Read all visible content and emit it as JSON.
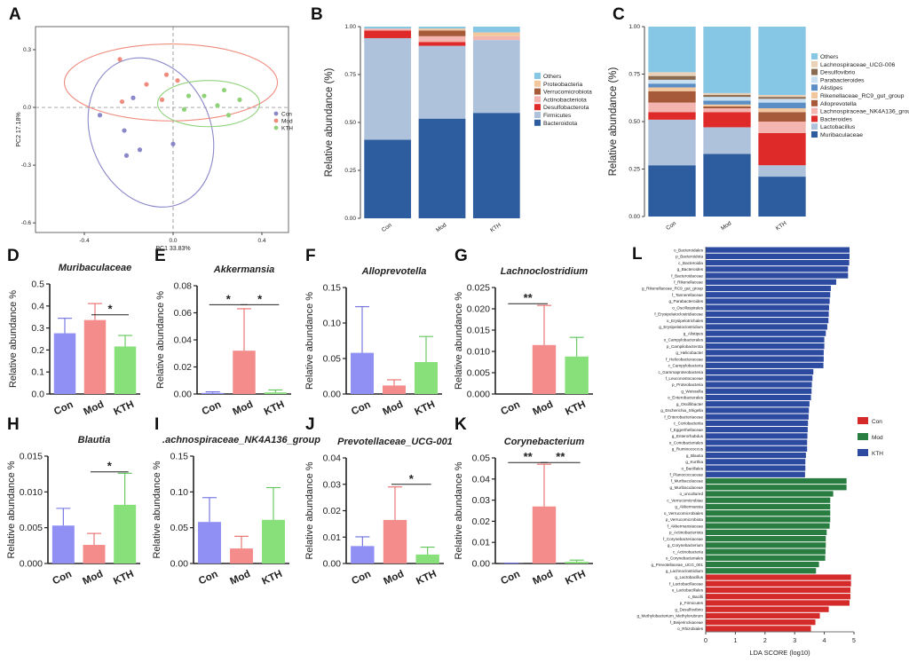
{
  "figure_title": "",
  "chart_data": [
    {
      "panel": "A",
      "type": "scatter",
      "title": "",
      "xlabel": "PC1 33.83%",
      "ylabel": "PC2 17.18%",
      "xlim": [
        -0.62,
        0.52
      ],
      "ylim": [
        -0.65,
        0.42
      ],
      "xticks": [
        {
          "v": -0.4,
          "l": "-0.4"
        },
        {
          "v": 0,
          "l": "0.0"
        },
        {
          "v": 0.4,
          "l": "0.4"
        }
      ],
      "yticks": [
        {
          "v": 0.3,
          "l": "0.3"
        },
        {
          "v": 0,
          "l": "0.0"
        },
        {
          "v": -0.3,
          "l": "-0.3"
        },
        {
          "v": -0.6,
          "l": "-0.6"
        }
      ],
      "legend": [
        "Con",
        "Mod",
        "KTH"
      ],
      "series": [
        {
          "name": "Con",
          "color": "#8b88c9",
          "points": [
            [
              -0.18,
              0.05
            ],
            [
              -0.33,
              -0.04
            ],
            [
              -0.22,
              -0.12
            ],
            [
              -0.15,
              -0.22
            ],
            [
              -0.21,
              -0.25
            ],
            [
              0.0,
              -0.19
            ]
          ],
          "ellipse": {
            "cx": -0.1,
            "cy": -0.13,
            "rx": 0.27,
            "ry": 0.4,
            "angle": -23
          }
        },
        {
          "name": "Mod",
          "color": "#f08c7e",
          "points": [
            [
              -0.24,
              0.25
            ],
            [
              -0.12,
              0.12
            ],
            [
              0.02,
              0.14
            ],
            [
              -0.23,
              0.03
            ],
            [
              -0.05,
              0.04
            ],
            [
              -0.03,
              0.17
            ]
          ],
          "ellipse": {
            "cx": -0.01,
            "cy": 0.13,
            "rx": 0.48,
            "ry": 0.2,
            "angle": 0
          }
        },
        {
          "name": "KTH",
          "color": "#8fd27a",
          "points": [
            [
              0.07,
              0.06
            ],
            [
              0.14,
              0.06
            ],
            [
              0.2,
              0.01
            ],
            [
              0.3,
              0.04
            ],
            [
              0.05,
              -0.01
            ],
            [
              0.23,
              0.09
            ],
            [
              0.25,
              -0.04
            ]
          ],
          "ellipse": {
            "cx": 0.16,
            "cy": 0.02,
            "rx": 0.23,
            "ry": 0.12,
            "angle": 0
          }
        }
      ]
    },
    {
      "panel": "B",
      "type": "bar",
      "stacked": true,
      "title": "",
      "xlabel": "",
      "ylabel": "Relative abundance (%)",
      "ylim": [
        0,
        1
      ],
      "yticks": [
        "0.00",
        "0.25",
        "0.50",
        "0.75",
        "1.00"
      ],
      "categories": [
        "Con",
        "Mod",
        "KTH"
      ],
      "series": [
        {
          "name": "Bacteroidota",
          "color": "#2e5d9f",
          "values": [
            0.41,
            0.52,
            0.55
          ]
        },
        {
          "name": "Firmicutes",
          "color": "#afc2dc",
          "values": [
            0.53,
            0.38,
            0.38
          ]
        },
        {
          "name": "Desulfobacterota",
          "color": "#de2a28",
          "values": [
            0.04,
            0.02,
            0.0
          ]
        },
        {
          "name": "Actinobacteriota",
          "color": "#f4b5b0",
          "values": [
            0.01,
            0.03,
            0.02
          ]
        },
        {
          "name": "Verrucomicrobiota",
          "color": "#a65a3a",
          "values": [
            0.0,
            0.03,
            0.0
          ]
        },
        {
          "name": "Proteobacteria",
          "color": "#f2c79e",
          "values": [
            0.0,
            0.01,
            0.02
          ]
        },
        {
          "name": "Others",
          "color": "#86c7e6",
          "values": [
            0.01,
            0.01,
            0.03
          ]
        }
      ]
    },
    {
      "panel": "C",
      "type": "bar",
      "stacked": true,
      "title": "",
      "xlabel": "",
      "ylabel": "Relative abundance (%)",
      "ylim": [
        0,
        1
      ],
      "yticks": [
        "0.00",
        "0.25",
        "0.50",
        "0.75",
        "1.00"
      ],
      "categories": [
        "Con",
        "Mod",
        "KTH"
      ],
      "series": [
        {
          "name": "Muribaculaceae",
          "color": "#2e5d9f",
          "values": [
            0.27,
            0.33,
            0.21
          ]
        },
        {
          "name": "Lactobacillus",
          "color": "#afc2dc",
          "values": [
            0.24,
            0.14,
            0.06
          ]
        },
        {
          "name": "Bacteroides",
          "color": "#de2a28",
          "values": [
            0.04,
            0.08,
            0.17
          ]
        },
        {
          "name": "Lachnospiraceae_NK4A136_group",
          "color": "#f4b5b0",
          "values": [
            0.05,
            0.02,
            0.06
          ]
        },
        {
          "name": "Alloprevotella",
          "color": "#a65a3a",
          "values": [
            0.06,
            0.01,
            0.05
          ]
        },
        {
          "name": "Rikenellaceae_RC9_gut_group",
          "color": "#f2c79e",
          "values": [
            0.02,
            0.01,
            0.02
          ]
        },
        {
          "name": "Alistipes",
          "color": "#5b8ec4",
          "values": [
            0.02,
            0.02,
            0.03
          ]
        },
        {
          "name": "Parabacteroides",
          "color": "#c7dff0",
          "values": [
            0.02,
            0.02,
            0.02
          ]
        },
        {
          "name": "Desulfovibrio",
          "color": "#8a6a50",
          "values": [
            0.02,
            0.01,
            0.01
          ]
        },
        {
          "name": "Lachnospiraceae_UCG-006",
          "color": "#e9d2b8",
          "values": [
            0.02,
            0.01,
            0.01
          ]
        },
        {
          "name": "Others",
          "color": "#86c7e6",
          "values": [
            0.24,
            0.35,
            0.36
          ]
        }
      ]
    },
    {
      "panel": "D",
      "type": "bar",
      "title": "Muribaculaceae",
      "ylabel": "Relative abundance %",
      "ylim": [
        0,
        0.5
      ],
      "yticks": [
        "0.0",
        "0.1",
        "0.2",
        "0.3",
        "0.4",
        "0.5"
      ],
      "categories": [
        "Con",
        "Mod",
        "KTH"
      ],
      "values": [
        0.276,
        0.336,
        0.216
      ],
      "errors": [
        0.068,
        0.075,
        0.05
      ],
      "significance": [
        {
          "from": 1,
          "to": 2,
          "label": "*",
          "y": 0.36
        }
      ]
    },
    {
      "panel": "E",
      "type": "bar",
      "title": "Akkermansia",
      "ylabel": "Relative abundance %",
      "ylim": [
        0,
        0.08
      ],
      "yticks": [
        "0.00",
        "0.02",
        "0.04",
        "0.06",
        "0.08"
      ],
      "categories": [
        "Con",
        "Mod",
        "KTH"
      ],
      "values": [
        0.0008,
        0.032,
        0.0012
      ],
      "errors": [
        0.0008,
        0.031,
        0.0018
      ],
      "significance": [
        {
          "from": 0,
          "to": 1,
          "label": "*",
          "y": 0.066
        },
        {
          "from": 1,
          "to": 2,
          "label": "*",
          "y": 0.066
        }
      ]
    },
    {
      "panel": "F",
      "type": "bar",
      "title": "Alloprevotella",
      "ylabel": "Relative abundance %",
      "ylim": [
        0,
        0.15
      ],
      "yticks": [
        "0.00",
        "0.05",
        "0.10",
        "0.15"
      ],
      "categories": [
        "Con",
        "Mod",
        "KTH"
      ],
      "values": [
        0.058,
        0.012,
        0.045
      ],
      "errors": [
        0.065,
        0.008,
        0.036
      ],
      "significance": []
    },
    {
      "panel": "G",
      "type": "bar",
      "title": "Lachnoclostridium",
      "ylabel": "Relative abundance %",
      "ylim": [
        0,
        0.025
      ],
      "yticks": [
        "0.000",
        "0.005",
        "0.010",
        "0.015",
        "0.020",
        "0.025"
      ],
      "categories": [
        "Con",
        "Mod",
        "KTH"
      ],
      "values": [
        0.0,
        0.0115,
        0.0088
      ],
      "errors": [
        0.0,
        0.0093,
        0.0045
      ],
      "significance": [
        {
          "from": 0,
          "to": 1,
          "label": "**",
          "y": 0.0212
        }
      ]
    },
    {
      "panel": "H",
      "type": "bar",
      "title": "Blautia",
      "ylabel": "Relative abundance %",
      "ylim": [
        0,
        0.015
      ],
      "yticks": [
        "0.000",
        "0.005",
        "0.010",
        "0.015"
      ],
      "categories": [
        "Con",
        "Mod",
        "KTH"
      ],
      "values": [
        0.0053,
        0.0026,
        0.0082
      ],
      "errors": [
        0.0024,
        0.0016,
        0.0044
      ],
      "significance": [
        {
          "from": 1,
          "to": 2,
          "label": "*",
          "y": 0.0128
        }
      ]
    },
    {
      "panel": "I",
      "type": "bar",
      "title": ".achnospiraceae_NK4A136_group",
      "ylabel": "Relative abundance %",
      "ylim": [
        0,
        0.15
      ],
      "yticks": [
        "0.00",
        "0.05",
        "0.10",
        "0.15"
      ],
      "categories": [
        "Con",
        "Mod",
        "KTH"
      ],
      "values": [
        0.058,
        0.021,
        0.061
      ],
      "errors": [
        0.034,
        0.017,
        0.045
      ],
      "significance": []
    },
    {
      "panel": "J",
      "type": "bar",
      "title": "Prevotellaceae_UCG-001",
      "ylabel": "Relative abundance %",
      "ylim": [
        0,
        0.04
      ],
      "yticks": [
        "0.00",
        "0.01",
        "0.02",
        "0.03",
        "0.04"
      ],
      "categories": [
        "Con",
        "Mod",
        "KTH"
      ],
      "values": [
        0.0066,
        0.0165,
        0.0034
      ],
      "errors": [
        0.0035,
        0.0125,
        0.0028
      ],
      "significance": [
        {
          "from": 1,
          "to": 2,
          "label": "*",
          "y": 0.03
        }
      ]
    },
    {
      "panel": "K",
      "type": "bar",
      "title": "Corynebacterium",
      "ylabel": "Relative abundance %",
      "ylim": [
        0,
        0.05
      ],
      "yticks": [
        "0.00",
        "0.01",
        "0.02",
        "0.03",
        "0.04",
        "0.05"
      ],
      "categories": [
        "Con",
        "Mod",
        "KTH"
      ],
      "values": [
        0.0001,
        0.027,
        0.0008
      ],
      "errors": [
        0.0001,
        0.02,
        0.0008
      ],
      "significance": [
        {
          "from": 0,
          "to": 1,
          "label": "**",
          "y": 0.0478
        },
        {
          "from": 1,
          "to": 2,
          "label": "**",
          "y": 0.0478
        }
      ]
    },
    {
      "panel": "L",
      "type": "bar",
      "orientation": "horizontal",
      "title": "",
      "xlabel": "LDA SCORE (log10)",
      "ylabel": "",
      "xlim": [
        0,
        5
      ],
      "xticks": [
        "0",
        "1",
        "2",
        "3",
        "4",
        "5"
      ],
      "legend": [
        "Con",
        "Mod",
        "KTH"
      ],
      "groups": [
        {
          "name": "KTH",
          "color": "#2b4aa0",
          "items": [
            [
              "o_Bacteroidales",
              4.85
            ],
            [
              "p_Bacteroidota",
              4.85
            ],
            [
              "c_Bacteroidia",
              4.84
            ],
            [
              "g_Bacteroides",
              4.8
            ],
            [
              "f_Bacteroidaceae",
              4.8
            ],
            [
              "f_Rikenellaceae",
              4.4
            ],
            [
              "g_Rikenellaceae_RC9_gut_group",
              4.22
            ],
            [
              "f_Tannerellaceae",
              4.2
            ],
            [
              "g_Parabacteroides",
              4.18
            ],
            [
              "o_Oscillospirales",
              4.16
            ],
            [
              "f_Erysipelatoclostridiaceae",
              4.15
            ],
            [
              "o_Erysipelotrichales",
              4.14
            ],
            [
              "g_Erysipelatoclostridium",
              4.1
            ],
            [
              "g_Alistipes",
              4.05
            ],
            [
              "o_Campylobacterales",
              4.0
            ],
            [
              "p_Campilobacterota",
              4.0
            ],
            [
              "g_Helicobacter",
              3.98
            ],
            [
              "f_Helicobacteraceae",
              3.98
            ],
            [
              "c_Campylobacteria",
              3.97
            ],
            [
              "c_Gammaproteobacteria",
              3.63
            ],
            [
              "f_Leuconostocaceae",
              3.6
            ],
            [
              "p_Proteobacteria",
              3.58
            ],
            [
              "g_Weissella",
              3.57
            ],
            [
              "o_Enterobacterales",
              3.55
            ],
            [
              "g_Oscillibacter",
              3.5
            ],
            [
              "g_Escherichia_Shigella",
              3.48
            ],
            [
              "f_Enterobacteriaceae",
              3.47
            ],
            [
              "c_Coriobacteriia",
              3.45
            ],
            [
              "f_Eggerthellaceae",
              3.44
            ],
            [
              "g_Enterorhabdus",
              3.43
            ],
            [
              "o_Coriobacteriales",
              3.42
            ],
            [
              "g_Ruminococcus",
              3.42
            ],
            [
              "g_Blautia",
              3.38
            ],
            [
              "g_Kurthia",
              3.36
            ],
            [
              "o_Bacillales",
              3.36
            ],
            [
              "f_Planococcaceae",
              3.35
            ]
          ]
        },
        {
          "name": "Mod",
          "color": "#2a7d40",
          "items": [
            [
              "f_Muribaculaceae",
              4.75
            ],
            [
              "g_Muribaculaceae",
              4.75
            ],
            [
              "o_uncultured",
              4.3
            ],
            [
              "c_Verrucomicrobiae",
              4.2
            ],
            [
              "g_Akkermansia",
              4.2
            ],
            [
              "o_Verrucomicrobiales",
              4.2
            ],
            [
              "p_Verrucomicrobiota",
              4.2
            ],
            [
              "f_Akkermansiaceae",
              4.18
            ],
            [
              "p_Actinobacteriota",
              4.08
            ],
            [
              "f_Corynebacteriaceae",
              4.05
            ],
            [
              "g_Corynebacterium",
              4.05
            ],
            [
              "c_Actinobacteria",
              4.04
            ],
            [
              "o_Corynebacteriales",
              4.03
            ],
            [
              "g_Prevotellaceae_UCG_001",
              3.82
            ],
            [
              "g_Lachnoclostridium",
              3.72
            ]
          ]
        },
        {
          "name": "Con",
          "color": "#d42a2a",
          "items": [
            [
              "g_Lactobacillus",
              4.9
            ],
            [
              "f_Lactobacillaceae",
              4.9
            ],
            [
              "o_Lactobacillales",
              4.88
            ],
            [
              "c_Bacilli",
              4.88
            ],
            [
              "p_Firmicutes",
              4.85
            ],
            [
              "g_Desulfovibrio",
              4.15
            ],
            [
              "g_Methylobacterium_Methylorubrum",
              3.85
            ],
            [
              "f_Beijerinckiaceae",
              3.7
            ],
            [
              "o_Rhizobiales",
              3.55
            ]
          ]
        }
      ]
    }
  ]
}
